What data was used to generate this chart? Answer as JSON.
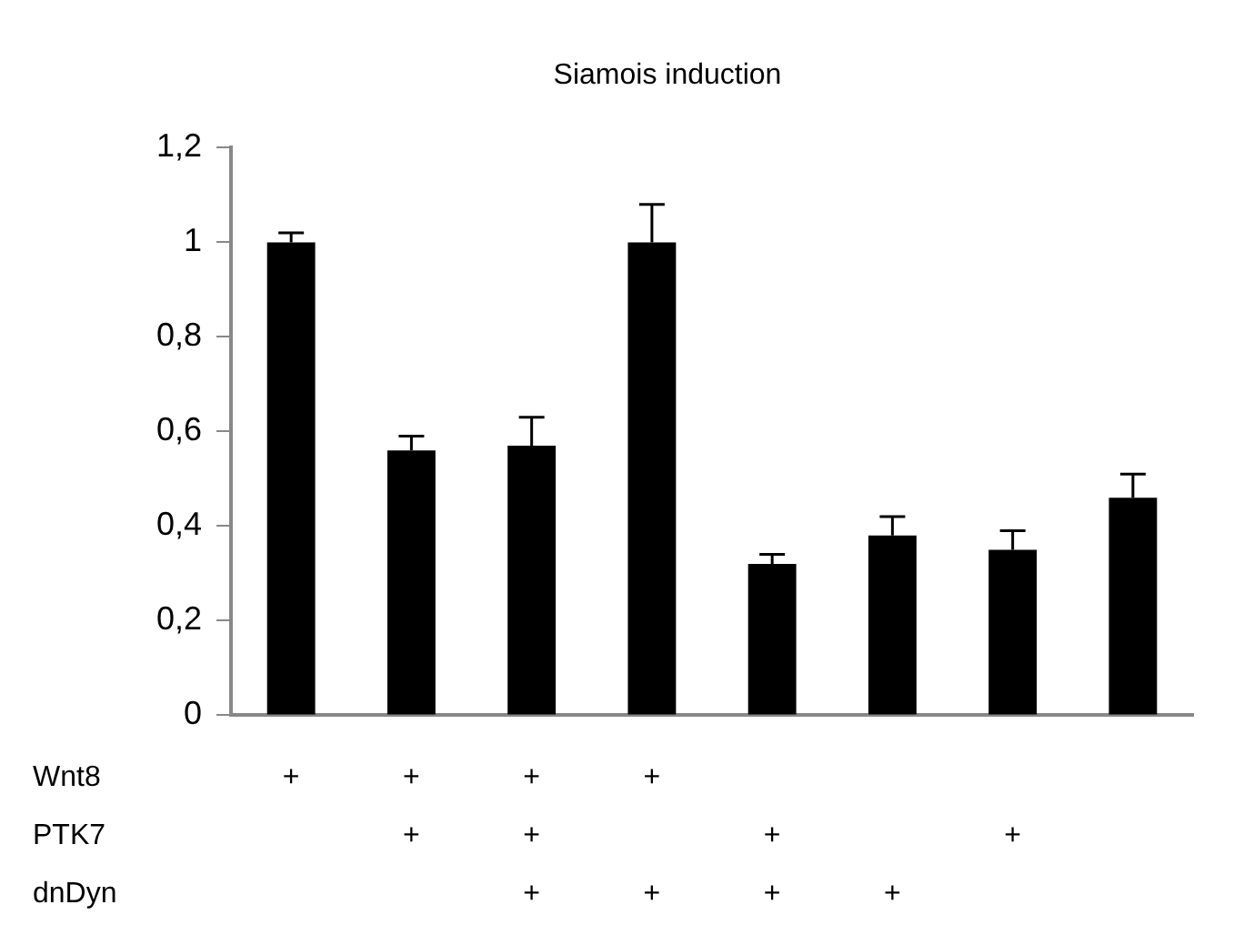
{
  "chart_data": [
    {
      "type": "bar",
      "title": "Siamois induction",
      "categories": [
        null,
        null,
        null,
        null,
        null,
        null,
        null,
        null
      ],
      "values": [
        1.0,
        0.56,
        0.57,
        1.0,
        0.32,
        0.38,
        0.35,
        0.46
      ],
      "errors": [
        [
          1.0,
          1.02
        ],
        [
          0.56,
          0.59
        ],
        [
          0.57,
          0.63
        ],
        [
          1.0,
          1.08
        ],
        [
          0.32,
          0.34
        ],
        [
          0.38,
          0.42
        ],
        [
          0.35,
          0.39
        ],
        [
          0.46,
          0.51
        ]
      ],
      "color": "#000000",
      "ylim": [
        0,
        1.2
      ],
      "yticks": [
        0,
        {
          "value": 0.2,
          "label": "0,2"
        },
        {
          "value": 0.4,
          "label": "0,4"
        },
        {
          "value": 0.6,
          "label": "0,6"
        },
        {
          "value": 0.8,
          "label": "0,8"
        },
        1,
        {
          "value": 1.2,
          "label": "1,2"
        }
      ],
      "grid": false,
      "legend": false
    },
    {
      "type": "heatmap",
      "categories": [
        null,
        null,
        null,
        null,
        null,
        null,
        null,
        null
      ],
      "y_categories": [
        "Wnt8",
        "PTK7",
        "dnDyn"
      ],
      "cells": [
        [
          null,
          null,
          null,
          null,
          null,
          null,
          null,
          null
        ],
        [
          null,
          null,
          null,
          null,
          null,
          null,
          null,
          null
        ],
        [
          null,
          null,
          null,
          null,
          null,
          null,
          null,
          null
        ]
      ],
      "cell_labels": [
        [
          "+",
          "+",
          "+",
          "+",
          null,
          null,
          null,
          null
        ],
        [
          null,
          "+",
          "+",
          null,
          "+",
          null,
          "+",
          null
        ],
        [
          null,
          null,
          "+",
          "+",
          "+",
          "+",
          null,
          null
        ]
      ]
    }
  ]
}
